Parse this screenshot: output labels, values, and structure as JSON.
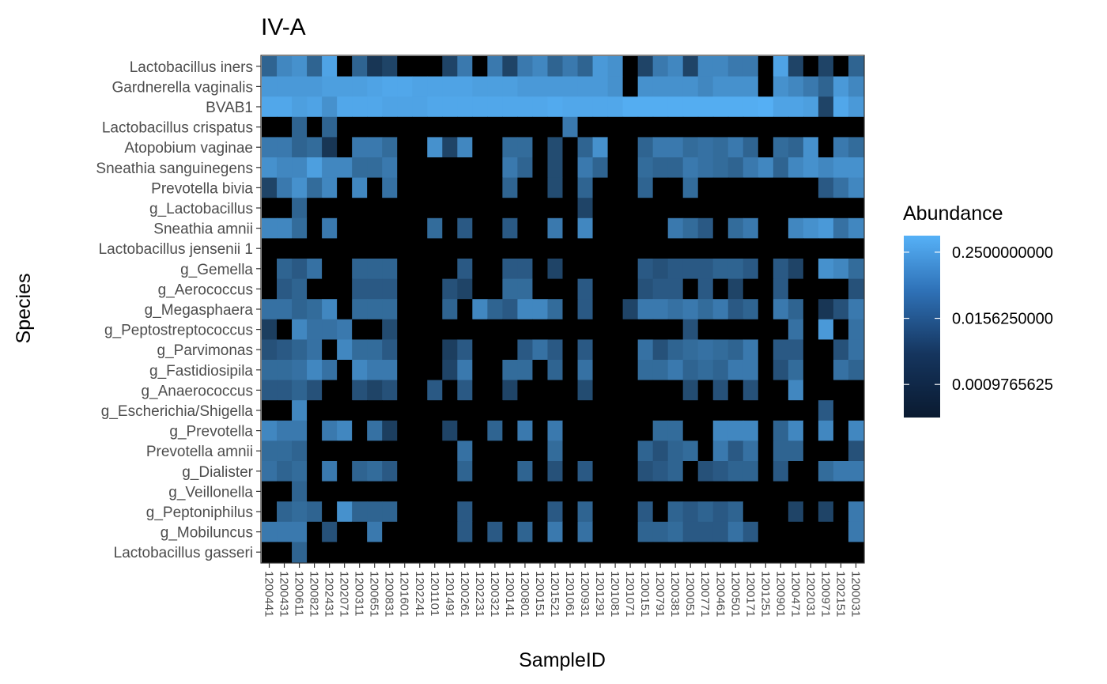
{
  "chart_data": {
    "type": "heatmap",
    "title": "IV-A",
    "xlabel": "SampleID",
    "ylabel": "Species",
    "legend": {
      "title": "Abundance",
      "placement": "right",
      "scale": "log2",
      "breaks": [
        "0.2500000000",
        "0.0156250000",
        "0.0009765625"
      ],
      "colors": {
        "low": "#0a1a30",
        "high": "#56b1f7"
      }
    },
    "samples": [
      "1200441",
      "1200431",
      "1200611",
      "1200821",
      "1202431",
      "1202071",
      "1200311",
      "1200651",
      "1200831",
      "1201601",
      "1202241",
      "1201101",
      "1201491",
      "1200261",
      "1202231",
      "1200321",
      "1200141",
      "1200801",
      "1200151",
      "1201521",
      "1201061",
      "1200931",
      "1201291",
      "1201081",
      "1201071",
      "1200151",
      "1200791",
      "1200381",
      "1200051",
      "1200771",
      "1200461",
      "1200501",
      "1200171",
      "1201251",
      "1200901",
      "1200471",
      "1202031",
      "1200971",
      "1202151",
      "1200031"
    ],
    "species": [
      "Lactobacillus iners",
      "Gardnerella vaginalis",
      "BVAB1",
      "Lactobacillus crispatus",
      "Atopobium vaginae",
      "Sneathia sanguinegens",
      "Prevotella bivia",
      "g_Lactobacillus",
      "Sneathia amnii",
      "Lactobacillus jensenii 1",
      "g_Gemella",
      "g_Aerococcus",
      "g_Megasphaera",
      "g_Peptostreptococcus",
      "g_Parvimonas",
      "g_Fastidiosipila",
      "g_Anaerococcus",
      "g_Escherichia/Shigella",
      "g_Prevotella",
      "Prevotella amnii",
      "g_Dialister",
      "g_Veillonella",
      "g_Peptoniphilus",
      "g_Mobiluncus",
      "Lactobacillus gasseri"
    ],
    "values": [
      [
        0.01,
        0.06,
        0.1,
        0.01,
        0.25,
        0,
        0.01,
        0.001,
        0.002,
        0,
        0,
        0,
        0.002,
        0.03,
        0,
        0.03,
        0.002,
        0.03,
        0.06,
        0.01,
        0.03,
        0.01,
        0.15,
        0.1,
        0,
        0.002,
        0.03,
        0.06,
        0.002,
        0.06,
        0.06,
        0.03,
        0.03,
        0,
        0.25,
        0.002,
        0,
        0.002,
        0,
        0.01
      ],
      [
        0.15,
        0.15,
        0.15,
        0.15,
        0.2,
        0.2,
        0.2,
        0.25,
        0.3,
        0.3,
        0.25,
        0.25,
        0.25,
        0.25,
        0.2,
        0.2,
        0.2,
        0.15,
        0.15,
        0.15,
        0.15,
        0.15,
        0.15,
        0.1,
        0,
        0.1,
        0.1,
        0.1,
        0.1,
        0.06,
        0.1,
        0.1,
        0.1,
        0,
        0.1,
        0.06,
        0.03,
        0.01,
        0.15,
        0.06
      ],
      [
        0.3,
        0.3,
        0.2,
        0.25,
        0.1,
        0.3,
        0.3,
        0.3,
        0.25,
        0.25,
        0.25,
        0.3,
        0.3,
        0.3,
        0.3,
        0.3,
        0.3,
        0.3,
        0.3,
        0.35,
        0.3,
        0.3,
        0.3,
        0.3,
        0.4,
        0.4,
        0.4,
        0.4,
        0.4,
        0.4,
        0.4,
        0.4,
        0.4,
        0.45,
        0.25,
        0.25,
        0.2,
        0.002,
        0.3,
        0.15
      ],
      [
        0,
        0,
        0.01,
        0,
        0.01,
        0,
        0,
        0,
        0,
        0,
        0,
        0,
        0,
        0,
        0,
        0,
        0,
        0,
        0,
        0,
        0.03,
        0,
        0,
        0,
        0,
        0,
        0,
        0,
        0,
        0,
        0,
        0,
        0,
        0,
        0,
        0,
        0,
        0,
        0,
        0
      ],
      [
        0.03,
        0.03,
        0.01,
        0.015,
        0.001,
        0,
        0.03,
        0.03,
        0.015,
        0,
        0,
        0.1,
        0.002,
        0.06,
        0,
        0,
        0.015,
        0.015,
        0,
        0.003,
        0,
        0.01,
        0.1,
        0,
        0,
        0.01,
        0.03,
        0.03,
        0.015,
        0.02,
        0.015,
        0.03,
        0.01,
        0,
        0.015,
        0.01,
        0.1,
        0,
        0.03,
        0.015
      ],
      [
        0.1,
        0.06,
        0.06,
        0.2,
        0.06,
        0.06,
        0.015,
        0.015,
        0.03,
        0,
        0,
        0,
        0,
        0,
        0,
        0,
        0.03,
        0.01,
        0,
        0.003,
        0,
        0.03,
        0.01,
        0,
        0,
        0.015,
        0.01,
        0.01,
        0.03,
        0.02,
        0.015,
        0.01,
        0.03,
        0.06,
        0.01,
        0.06,
        0.1,
        0.06,
        0.1,
        0.1
      ],
      [
        0.002,
        0.03,
        0.1,
        0.015,
        0.06,
        0,
        0.06,
        0,
        0.02,
        0,
        0,
        0,
        0,
        0,
        0,
        0,
        0.01,
        0,
        0,
        0.003,
        0,
        0.01,
        0,
        0,
        0,
        0.01,
        0,
        0,
        0.015,
        0,
        0,
        0,
        0,
        0,
        0,
        0,
        0,
        0.006,
        0.02,
        0.06
      ],
      [
        0,
        0,
        0.01,
        0,
        0,
        0,
        0,
        0,
        0,
        0,
        0,
        0,
        0,
        0,
        0,
        0,
        0,
        0,
        0,
        0,
        0,
        0.002,
        0,
        0,
        0,
        0,
        0,
        0,
        0,
        0,
        0,
        0,
        0,
        0,
        0,
        0,
        0,
        0,
        0,
        0
      ],
      [
        0.06,
        0.06,
        0.015,
        0,
        0.03,
        0,
        0,
        0,
        0,
        0,
        0,
        0.015,
        0,
        0.006,
        0,
        0,
        0.006,
        0,
        0,
        0.03,
        0,
        0.06,
        0,
        0,
        0,
        0,
        0,
        0.03,
        0.015,
        0.006,
        0,
        0.015,
        0.03,
        0,
        0,
        0.06,
        0.1,
        0.15,
        0.02,
        0.06
      ],
      [
        0,
        0,
        0,
        0,
        0,
        0,
        0,
        0,
        0,
        0,
        0,
        0,
        0,
        0,
        0,
        0,
        0,
        0,
        0,
        0,
        0,
        0,
        0,
        0,
        0,
        0,
        0,
        0,
        0,
        0,
        0,
        0,
        0,
        0,
        0,
        0,
        0,
        0,
        0,
        0
      ],
      [
        0,
        0.01,
        0.006,
        0.02,
        0,
        0,
        0.01,
        0.01,
        0.01,
        0,
        0,
        0,
        0,
        0.006,
        0,
        0,
        0.006,
        0.006,
        0,
        0.002,
        0,
        0,
        0,
        0,
        0,
        0.006,
        0.004,
        0.006,
        0.006,
        0.006,
        0.01,
        0.01,
        0.006,
        0,
        0.006,
        0.002,
        0,
        0.1,
        0.06,
        0.015
      ],
      [
        0,
        0.006,
        0.01,
        0,
        0,
        0,
        0.006,
        0.006,
        0.006,
        0,
        0,
        0,
        0.004,
        0.002,
        0,
        0,
        0.015,
        0.015,
        0,
        0,
        0,
        0.006,
        0,
        0,
        0,
        0.004,
        0.006,
        0.006,
        0,
        0.006,
        0,
        0.002,
        0,
        0,
        0.006,
        0,
        0,
        0,
        0,
        0.004
      ],
      [
        0.02,
        0.02,
        0.01,
        0.015,
        0.06,
        0,
        0.015,
        0.015,
        0.015,
        0,
        0,
        0,
        0.01,
        0,
        0.06,
        0.01,
        0.006,
        0.06,
        0.06,
        0.015,
        0,
        0.006,
        0,
        0,
        0.002,
        0.03,
        0.03,
        0.02,
        0.03,
        0.015,
        0.03,
        0.006,
        0.01,
        0,
        0.03,
        0.01,
        0,
        0.001,
        0.004,
        0.03
      ],
      [
        0.0015,
        0,
        0.06,
        0.02,
        0.02,
        0.03,
        0,
        0,
        0.003,
        0,
        0,
        0,
        0,
        0,
        0,
        0,
        0,
        0,
        0,
        0,
        0,
        0,
        0,
        0,
        0,
        0,
        0,
        0,
        0.004,
        0,
        0,
        0,
        0,
        0,
        0,
        0.02,
        0,
        0.15,
        0,
        0.02
      ],
      [
        0.004,
        0.006,
        0.01,
        0.02,
        0,
        0.06,
        0.015,
        0.015,
        0.006,
        0,
        0,
        0,
        0.0015,
        0.006,
        0,
        0,
        0,
        0.006,
        0.02,
        0.006,
        0,
        0.006,
        0,
        0,
        0,
        0.02,
        0.004,
        0.01,
        0.015,
        0.02,
        0.015,
        0.01,
        0.03,
        0,
        0.006,
        0.006,
        0,
        0,
        0.004,
        0.02
      ],
      [
        0.015,
        0.015,
        0.02,
        0.06,
        0.02,
        0,
        0.06,
        0.03,
        0.03,
        0,
        0,
        0,
        0.002,
        0.03,
        0,
        0,
        0.015,
        0.015,
        0,
        0.01,
        0,
        0.02,
        0,
        0,
        0,
        0.015,
        0.015,
        0.03,
        0.01,
        0.015,
        0.01,
        0.03,
        0.03,
        0,
        0.004,
        0.015,
        0,
        0,
        0.02,
        0.01
      ],
      [
        0.006,
        0.006,
        0.01,
        0.004,
        0,
        0,
        0.004,
        0.002,
        0.004,
        0,
        0,
        0.006,
        0,
        0.006,
        0,
        0,
        0.002,
        0,
        0,
        0,
        0,
        0.003,
        0,
        0,
        0,
        0,
        0,
        0,
        0.003,
        0,
        0.004,
        0,
        0.004,
        0,
        0,
        0.06,
        0,
        0,
        0,
        0
      ],
      [
        0,
        0,
        0.06,
        0,
        0,
        0,
        0,
        0,
        0,
        0,
        0,
        0,
        0,
        0,
        0,
        0,
        0,
        0,
        0,
        0,
        0,
        0,
        0,
        0,
        0,
        0,
        0,
        0,
        0,
        0,
        0,
        0,
        0,
        0,
        0,
        0,
        0,
        0.006,
        0,
        0
      ],
      [
        0.06,
        0.03,
        0.03,
        0,
        0.03,
        0.06,
        0,
        0.02,
        0.0015,
        0,
        0,
        0,
        0.002,
        0,
        0,
        0.01,
        0,
        0.03,
        0,
        0.03,
        0,
        0,
        0,
        0,
        0,
        0,
        0.015,
        0.015,
        0,
        0,
        0.06,
        0.06,
        0.06,
        0,
        0.01,
        0.06,
        0,
        0.06,
        0,
        0.06
      ],
      [
        0.015,
        0.015,
        0.01,
        0,
        0,
        0,
        0,
        0,
        0,
        0,
        0,
        0,
        0,
        0.02,
        0,
        0,
        0,
        0,
        0,
        0.015,
        0,
        0,
        0,
        0,
        0,
        0.01,
        0.004,
        0.01,
        0.015,
        0,
        0.03,
        0.006,
        0.02,
        0,
        0.01,
        0.01,
        0,
        0,
        0,
        0.004
      ],
      [
        0.02,
        0.01,
        0.015,
        0,
        0.03,
        0,
        0.01,
        0.015,
        0.006,
        0,
        0,
        0,
        0,
        0.01,
        0,
        0,
        0,
        0.01,
        0,
        0.004,
        0,
        0.006,
        0,
        0,
        0,
        0.004,
        0.006,
        0.01,
        0,
        0.004,
        0.006,
        0.01,
        0.01,
        0,
        0.006,
        0,
        0,
        0.015,
        0.03,
        0.03
      ],
      [
        0,
        0,
        0.01,
        0,
        0,
        0,
        0,
        0,
        0,
        0,
        0,
        0,
        0,
        0,
        0,
        0,
        0,
        0,
        0,
        0,
        0,
        0,
        0,
        0,
        0,
        0,
        0,
        0,
        0,
        0,
        0,
        0,
        0,
        0,
        0,
        0,
        0,
        0,
        0,
        0
      ],
      [
        0,
        0.01,
        0.015,
        0.01,
        0,
        0.1,
        0.01,
        0.01,
        0.01,
        0,
        0,
        0,
        0,
        0.006,
        0,
        0,
        0,
        0,
        0,
        0.006,
        0,
        0.01,
        0,
        0,
        0,
        0.006,
        0,
        0.01,
        0.006,
        0.01,
        0.006,
        0.01,
        0,
        0,
        0,
        0.002,
        0,
        0.002,
        0,
        0.03
      ],
      [
        0.03,
        0.03,
        0.03,
        0,
        0.004,
        0,
        0,
        0.03,
        0,
        0,
        0,
        0,
        0,
        0.006,
        0,
        0.006,
        0,
        0.01,
        0,
        0.03,
        0,
        0.02,
        0,
        0,
        0,
        0.01,
        0.01,
        0.015,
        0.006,
        0.006,
        0.006,
        0.02,
        0.006,
        0,
        0,
        0,
        0,
        0,
        0,
        0.03
      ],
      [
        0,
        0,
        0.01,
        0,
        0,
        0,
        0,
        0,
        0,
        0,
        0,
        0,
        0,
        0,
        0,
        0,
        0,
        0,
        0,
        0,
        0,
        0,
        0,
        0,
        0,
        0,
        0,
        0,
        0,
        0,
        0,
        0,
        0,
        0,
        0,
        0,
        0,
        0,
        0,
        0
      ]
    ]
  }
}
